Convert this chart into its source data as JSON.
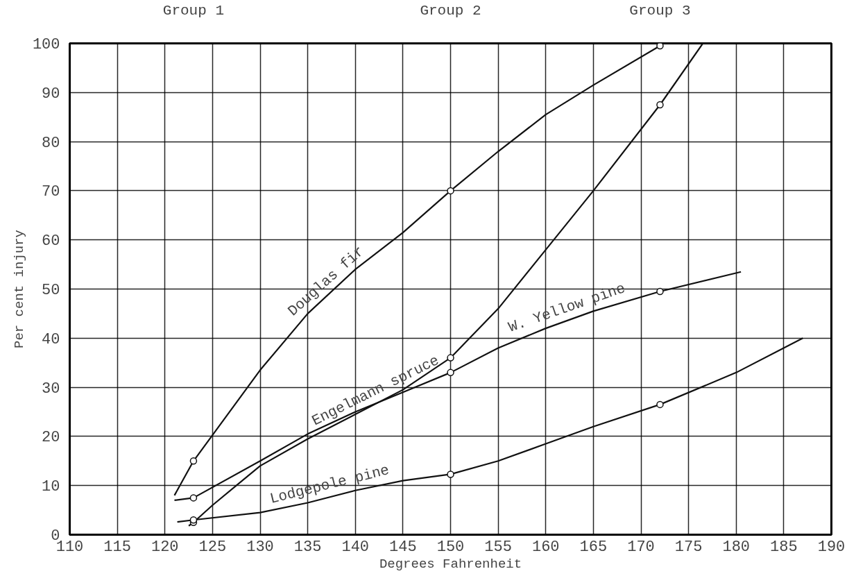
{
  "chart_data": {
    "type": "line",
    "xlabel": "Degrees Fahrenheit",
    "ylabel": "Per cent injury",
    "xlim": [
      110,
      190
    ],
    "xticks": [
      110,
      115,
      120,
      125,
      130,
      135,
      140,
      145,
      150,
      155,
      160,
      165,
      170,
      175,
      180,
      185,
      190
    ],
    "ylim": [
      0,
      100
    ],
    "yticks": [
      0,
      10,
      20,
      30,
      40,
      50,
      60,
      70,
      80,
      90,
      100
    ],
    "grid": true,
    "legend": false,
    "line_style": "solid",
    "annotations": [
      "Group 1",
      "Group 2",
      "Group 3"
    ],
    "series": [
      {
        "name": "Douglas fir",
        "color": "#111111",
        "marker": "none",
        "x": [
          121,
          123,
          130,
          135,
          140,
          145,
          150,
          155,
          160,
          165,
          172
        ],
        "values": [
          8,
          15,
          33.5,
          45,
          54,
          61.5,
          70,
          78,
          85.5,
          91.5,
          99.5
        ]
      },
      {
        "name": "Engelmann spruce",
        "color": "#111111",
        "marker": "none",
        "x": [
          122.5,
          123,
          125,
          127.5,
          130,
          135,
          140,
          145,
          150,
          155,
          160,
          165,
          172,
          176.5
        ],
        "values": [
          1.8,
          2.5,
          6,
          10,
          14,
          19.5,
          24.5,
          29.5,
          36,
          46,
          58,
          70,
          87.5,
          100
        ]
      },
      {
        "name": "W. Yellow pine",
        "color": "#111111",
        "marker": "none",
        "x": [
          121,
          123,
          130,
          135,
          140,
          145,
          150,
          155,
          160,
          165,
          172,
          180.5
        ],
        "values": [
          7,
          7.5,
          15,
          20.5,
          25,
          29,
          33,
          38,
          42,
          45.5,
          49.5,
          53.5
        ]
      },
      {
        "name": "Lodgepole pine",
        "color": "#111111",
        "marker": "none",
        "x": [
          121.3,
          123,
          130,
          135,
          140,
          145,
          150,
          155,
          160,
          165,
          172,
          180,
          187
        ],
        "values": [
          2.6,
          3,
          4.5,
          6.5,
          9,
          11,
          12.3,
          15,
          18.5,
          22,
          26.5,
          33,
          40
        ]
      },
      {
        "type": "scatter",
        "color": "#111111",
        "marker": "circle",
        "x": [
          123,
          150,
          172
        ],
        "values": [
          15,
          70,
          99.5
        ]
      },
      {
        "type": "scatter",
        "color": "#111111",
        "marker": "circle",
        "x": [
          123,
          150,
          172
        ],
        "values": [
          2.5,
          36,
          87.5
        ]
      },
      {
        "type": "scatter",
        "color": "#111111",
        "marker": "circle",
        "x": [
          123,
          150,
          172
        ],
        "values": [
          7.5,
          33,
          49.5
        ]
      },
      {
        "type": "scatter",
        "color": "#111111",
        "marker": "circle",
        "x": [
          123,
          150,
          172
        ],
        "values": [
          3,
          12.3,
          26.5
        ]
      }
    ]
  }
}
